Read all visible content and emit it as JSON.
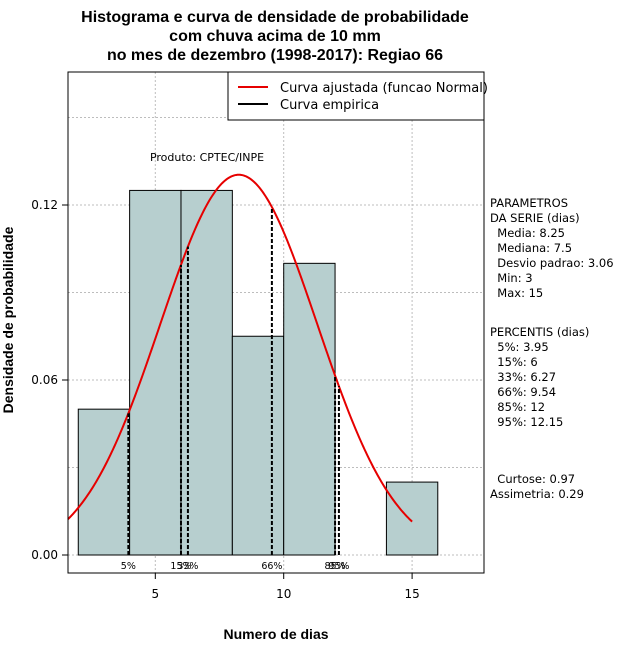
{
  "chart_data": {
    "type": "bar",
    "title_lines": [
      "Histograma e curva de densidade de probabilidade",
      "com chuva acima de 10 mm",
      "no mes de dezembro (1998-2017): Regiao 66"
    ],
    "xlabel": "Numero de dias",
    "ylabel": "Densidade de probabilidade",
    "xlim": [
      1.6,
      17.8
    ],
    "ylim": [
      0,
      0.16
    ],
    "x_ticks": [
      5,
      10,
      15
    ],
    "y_ticks": [
      0.0,
      0.06,
      0.12
    ],
    "y_tick_labels": [
      "0.00",
      "0.06",
      "0.12"
    ],
    "grid": true,
    "bins": [
      {
        "from": 2,
        "to": 4,
        "density": 0.05
      },
      {
        "from": 4,
        "to": 6,
        "density": 0.125
      },
      {
        "from": 6,
        "to": 8,
        "density": 0.125
      },
      {
        "from": 8,
        "to": 10,
        "density": 0.075
      },
      {
        "from": 10,
        "to": 12,
        "density": 0.1
      },
      {
        "from": 12,
        "to": 14,
        "density": 0
      },
      {
        "from": 14,
        "to": 16,
        "density": 0.025
      }
    ],
    "bar_color": "#b7cfcf",
    "normal_curve": {
      "mean": 8.25,
      "sd": 3.06,
      "x_from": 1.6,
      "x_to": 15,
      "color": "#e60000"
    },
    "percentile_lines": [
      {
        "label": "5%",
        "x": 3.95
      },
      {
        "label": "15%",
        "x": 6
      },
      {
        "label": "33%",
        "x": 6.27
      },
      {
        "label": "66%",
        "x": 9.54
      },
      {
        "label": "85%",
        "x": 12
      },
      {
        "label": "95%",
        "x": 12.15
      }
    ],
    "legend_position": "top-right",
    "legend": [
      {
        "label": "Curva ajustada (funcao Normal)",
        "color": "#e60000"
      },
      {
        "label": "Curva empirica",
        "color": "#000000"
      }
    ],
    "annotation": "Produto: CPTEC/INPE",
    "parameters_block": [
      "PARAMETROS",
      "DA SERIE (dias)",
      "  Media: 8.25",
      "  Mediana: 7.5",
      "  Desvio padrao: 3.06",
      "  Min: 3",
      "  Max: 15"
    ],
    "percentis_block": [
      "PERCENTIS (dias)",
      "  5%: 3.95",
      "  15%: 6",
      "  33%: 6.27",
      "  66%: 9.54",
      "  85%: 12",
      "  95%: 12.15"
    ],
    "stats_block": [
      "  Curtose: 0.97",
      "Assimetria: 0.29"
    ]
  }
}
